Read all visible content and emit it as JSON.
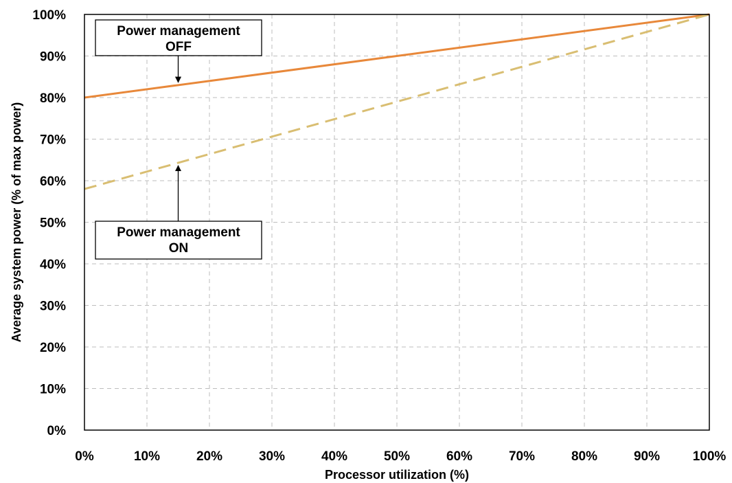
{
  "chart_data": {
    "type": "line",
    "xlabel": "Processor utilization (%)",
    "ylabel": "Average system power (% of max power)",
    "xlim": [
      0,
      100
    ],
    "ylim": [
      0,
      100
    ],
    "x_ticks": [
      "0%",
      "10%",
      "20%",
      "30%",
      "40%",
      "50%",
      "60%",
      "70%",
      "80%",
      "90%",
      "100%"
    ],
    "y_ticks": [
      "0%",
      "10%",
      "20%",
      "30%",
      "40%",
      "50%",
      "60%",
      "70%",
      "80%",
      "90%",
      "100%"
    ],
    "grid": true,
    "series": [
      {
        "name": "Power management OFF",
        "color": "#E8883A",
        "style": "solid",
        "x": [
          0,
          100
        ],
        "y": [
          80,
          100
        ]
      },
      {
        "name": "Power management ON",
        "color": "#D9BE72",
        "style": "dashed",
        "x": [
          0,
          100
        ],
        "y": [
          58,
          100
        ]
      }
    ],
    "annotations": [
      {
        "line1": "Power management",
        "line2": "OFF",
        "target": [
          15,
          83
        ]
      },
      {
        "line1": "Power management",
        "line2": "ON",
        "target": [
          15,
          64.3
        ]
      }
    ]
  }
}
